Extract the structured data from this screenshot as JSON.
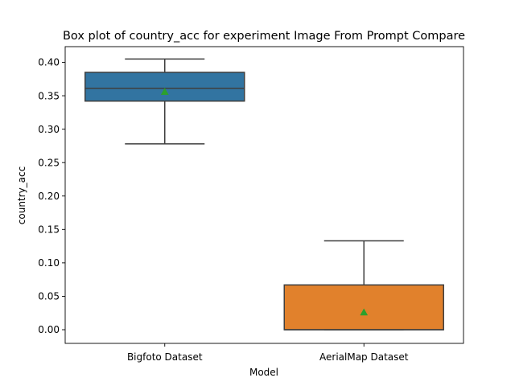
{
  "chart_data": {
    "type": "box",
    "title": "Box plot of country_acc for experiment Image From Prompt Compare",
    "xlabel": "Model",
    "ylabel": "country_acc",
    "ylim": [
      -0.02,
      0.42
    ],
    "yticks": [
      0.0,
      0.05,
      0.1,
      0.15,
      0.2,
      0.25,
      0.3,
      0.35,
      0.4
    ],
    "ytick_labels": [
      "0.00",
      "0.05",
      "0.10",
      "0.15",
      "0.20",
      "0.25",
      "0.30",
      "0.35",
      "0.40"
    ],
    "categories": [
      "Bigfoto Dataset",
      "AerialMap Dataset"
    ],
    "boxes": [
      {
        "category": "Bigfoto Dataset",
        "whisker_low": 0.278,
        "q1": 0.342,
        "median": 0.361,
        "q3": 0.385,
        "whisker_high": 0.405,
        "mean": 0.356,
        "color": "#3274a1"
      },
      {
        "category": "AerialMap Dataset",
        "whisker_low": 0.0,
        "q1": 0.0,
        "median": 0.0,
        "q3": 0.067,
        "whisker_high": 0.133,
        "mean": 0.026,
        "color": "#e1812c"
      }
    ],
    "mean_marker_color": "#2ca02c",
    "grid": false
  }
}
